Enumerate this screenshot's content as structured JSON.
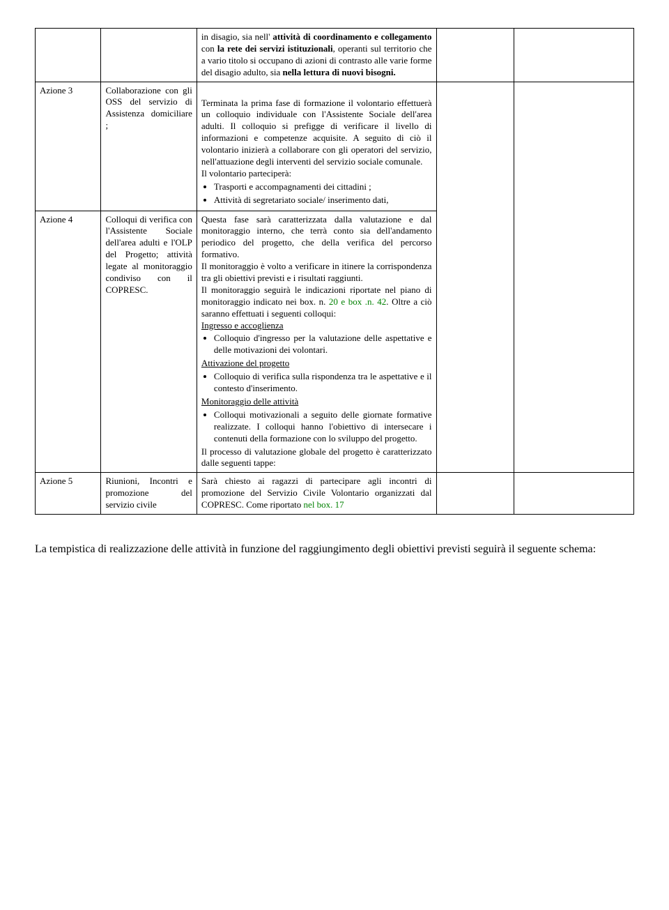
{
  "row0": {
    "col1": "",
    "col2": "",
    "c3_p1_a": "in disagio",
    "c3_p1_b": ", sia nell' ",
    "c3_p1_c": "attività di coordinamento e collegamento",
    "c3_p1_d": " con ",
    "c3_p1_e": "la rete dei servizi istituzionali",
    "c3_p1_f": ", operanti sul territorio che a vario titolo si occupano di azioni di contrasto alle varie forme del disagio adulto, sia ",
    "c3_p1_g": "nella lettura di nuovi bisogni."
  },
  "row1": {
    "col1": "Azione 3",
    "col2": "Collaborazione con gli OSS del servizio di Assistenza domiciliare ;",
    "c3_p1": "Terminata la prima fase di formazione il volontario effettuerà un colloquio individuale con l'Assistente Sociale dell'area adulti. Il colloquio si prefigge di verificare il livello di informazioni e competenze acquisite. A seguito di ciò il volontario inizierà a collaborare con gli operatori del servizio, nell'attuazione degli interventi del servizio sociale comunale.",
    "c3_p2": "Il volontario parteciperà:",
    "c3_li1": "Trasporti e accompagnamenti dei cittadini ;",
    "c3_li2": "Attività di segretariato sociale/ inserimento dati,"
  },
  "row2": {
    "col1": "Azione  4",
    "col2": "Colloqui di verifica con l'Assistente Sociale dell'area adulti e l'OLP del Progetto; attività legate al monitoraggio condiviso con il COPRESC.",
    "c3_p1": "Questa fase sarà caratterizzata dalla valutazione e dal monitoraggio interno, che terrà conto sia dell'andamento periodico del progetto, che della verifica del percorso formativo.",
    "c3_p2": "Il monitoraggio è volto a verificare in itinere la corrispondenza tra gli obiettivi previsti  e i  risultati raggiunti.",
    "c3_p3a": "Il monitoraggio seguirà le indicazioni riportate nel piano di monitoraggio indicato nei box. n. ",
    "c3_p3b": "20 e box .n. 42",
    "c3_p3c": ". Oltre a ciò saranno effettuati i seguenti colloqui:",
    "h1": "Ingresso e accoglienza",
    "li1": "Colloquio d'ingresso per la valutazione delle aspettative e delle motivazioni dei volontari.",
    "h2": "Attivazione del progetto",
    "li2": "Colloquio di verifica sulla rispondenza tra le aspettative e il contesto d'inserimento.",
    "h3": "Monitoraggio delle attività",
    "li3": "Colloqui motivazionali a seguito delle giornate formative realizzate. I colloqui hanno l'obiettivo di intersecare i contenuti della formazione con lo sviluppo del progetto.",
    "c3_p4": "Il processo di valutazione globale del progetto è caratterizzato dalle seguenti tappe:"
  },
  "row3": {
    "col1": "Azione 5",
    "col2": "Riunioni, Incontri e promozione del servizio civile",
    "c3a": "Sarà chiesto ai ragazzi di partecipare agli incontri di promozione del Servizio Civile Volontario organizzati dal COPRESC. Come riportato ",
    "c3b": "nel box.  17"
  },
  "footer": "La tempistica di realizzazione delle attività in funzione del raggiungimento degli obiettivi previsti seguirà il seguente schema:"
}
